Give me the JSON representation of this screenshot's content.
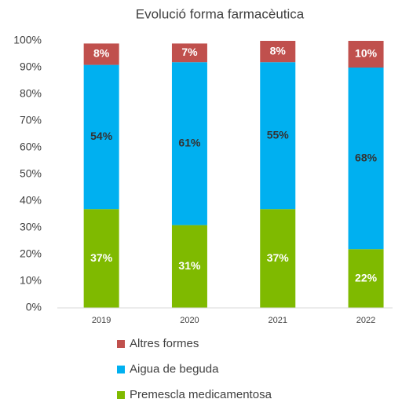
{
  "chart_data": {
    "type": "stacked_bar",
    "title": "Evolució forma farmacèutica",
    "categories": [
      "2019",
      "2020",
      "2021",
      "2022"
    ],
    "series": [
      {
        "name": "Premescla medicamentosa",
        "color": "#7fba00",
        "values": [
          37,
          31,
          37,
          22
        ],
        "value_labels": [
          "37%",
          "31%",
          "37%",
          "22%"
        ]
      },
      {
        "name": "Aigua de beguda",
        "color": "#00b0f0",
        "values": [
          54,
          61,
          55,
          68
        ],
        "value_labels": [
          "54%",
          "61%",
          "55%",
          "68%"
        ]
      },
      {
        "name": "Altres formes",
        "color": "#c0504d",
        "values": [
          8,
          7,
          8,
          10
        ],
        "value_labels": [
          "8%",
          "7%",
          "8%",
          "10%"
        ]
      }
    ],
    "ylim": [
      0,
      100
    ],
    "yticks": [
      {
        "value": 0,
        "label": "0%"
      },
      {
        "value": 10,
        "label": "10%"
      },
      {
        "value": 20,
        "label": "20%"
      },
      {
        "value": 30,
        "label": "30%"
      },
      {
        "value": 40,
        "label": "40%"
      },
      {
        "value": 50,
        "label": "50%"
      },
      {
        "value": 60,
        "label": "60%"
      },
      {
        "value": 70,
        "label": "70%"
      },
      {
        "value": 80,
        "label": "80%"
      },
      {
        "value": 90,
        "label": "90%"
      },
      {
        "value": 100,
        "label": "100%"
      }
    ],
    "grid": false,
    "legend": "bottom"
  }
}
